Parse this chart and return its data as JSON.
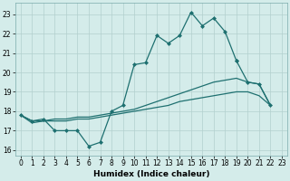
{
  "xlabel": "Humidex (Indice chaleur)",
  "background_color": "#d4ecea",
  "grid_color": "#b2d0ce",
  "line_color": "#1e7070",
  "xlim": [
    -0.5,
    23.5
  ],
  "ylim": [
    15.7,
    23.6
  ],
  "yticks": [
    16,
    17,
    18,
    19,
    20,
    21,
    22,
    23
  ],
  "xticks": [
    0,
    1,
    2,
    3,
    4,
    5,
    6,
    7,
    8,
    9,
    10,
    11,
    12,
    13,
    14,
    15,
    16,
    17,
    18,
    19,
    20,
    21,
    22,
    23
  ],
  "line1_y": [
    17.8,
    17.5,
    17.6,
    17.0,
    17.0,
    17.0,
    16.2,
    16.4,
    18.0,
    18.3,
    20.4,
    20.5,
    21.9,
    21.5,
    21.9,
    23.1,
    22.4,
    22.8,
    22.1,
    20.6,
    null,
    null,
    null,
    null
  ],
  "line2_y": [
    17.8,
    17.5,
    17.6,
    17.0,
    17.0,
    17.0,
    16.2,
    16.4,
    18.0,
    18.3,
    20.4,
    20.5,
    21.9,
    21.5,
    21.9,
    23.1,
    22.4,
    22.8,
    22.1,
    20.6,
    19.5,
    19.4,
    18.3,
    null
  ],
  "line3_y": [
    17.8,
    17.5,
    17.5,
    17.6,
    17.6,
    17.7,
    17.7,
    17.8,
    17.9,
    18.0,
    18.1,
    18.3,
    18.5,
    18.7,
    18.9,
    19.1,
    19.3,
    19.5,
    19.6,
    19.7,
    19.5,
    19.4,
    18.3,
    null
  ],
  "line4_y": [
    17.8,
    17.4,
    17.5,
    17.5,
    17.5,
    17.6,
    17.6,
    17.7,
    17.8,
    17.9,
    18.0,
    18.1,
    18.2,
    18.3,
    18.5,
    18.6,
    18.7,
    18.8,
    18.9,
    19.0,
    19.0,
    18.8,
    18.3,
    null
  ],
  "marker": "D",
  "marker_size": 2.0,
  "linewidth": 0.9
}
